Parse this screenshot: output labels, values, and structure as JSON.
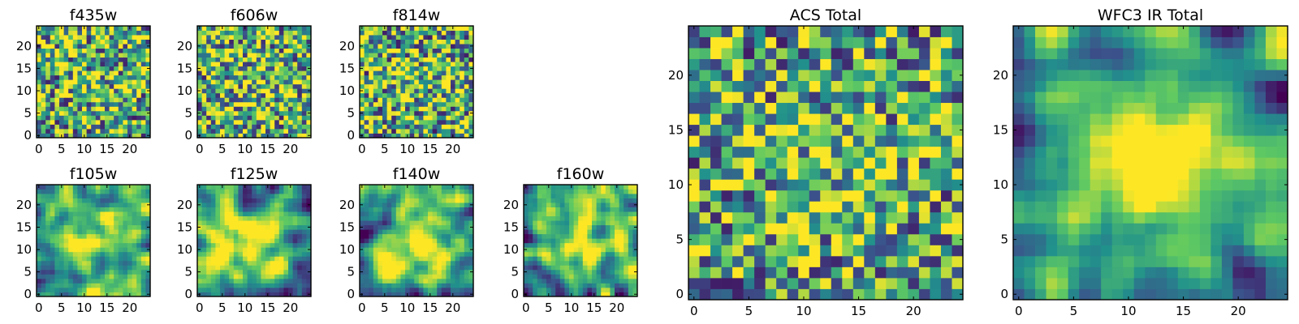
{
  "figure": {
    "colormap": "viridis",
    "colormap_stops": [
      "#440154",
      "#3b528b",
      "#21918c",
      "#5ec962",
      "#fde725"
    ]
  },
  "chart_data": [
    {
      "type": "heatmap",
      "title": "f435w",
      "xlim": [
        -0.5,
        24.5
      ],
      "ylim": [
        -0.5,
        24.5
      ],
      "xticks": [
        0,
        5,
        10,
        15,
        20
      ],
      "yticks": [
        0,
        5,
        10,
        15,
        20
      ],
      "grid_size": 25,
      "seed": 11,
      "smoothing": 0,
      "concentration": 0.08,
      "mean": 0.64,
      "spread": 0.55
    },
    {
      "type": "heatmap",
      "title": "f606w",
      "xlim": [
        -0.5,
        24.5
      ],
      "ylim": [
        -0.5,
        24.5
      ],
      "xticks": [
        0,
        5,
        10,
        15,
        20
      ],
      "yticks": [
        0,
        5,
        10,
        15,
        20
      ],
      "grid_size": 25,
      "seed": 23,
      "smoothing": 0,
      "concentration": 0.08,
      "mean": 0.64,
      "spread": 0.55
    },
    {
      "type": "heatmap",
      "title": "f814w",
      "xlim": [
        -0.5,
        24.5
      ],
      "ylim": [
        -0.5,
        24.5
      ],
      "xticks": [
        0,
        5,
        10,
        15,
        20
      ],
      "yticks": [
        0,
        5,
        10,
        15,
        20
      ],
      "grid_size": 25,
      "seed": 37,
      "smoothing": 0,
      "concentration": 0.1,
      "mean": 0.64,
      "spread": 0.55
    },
    {
      "type": "heatmap",
      "title": "f105w",
      "xlim": [
        -0.5,
        24.5
      ],
      "ylim": [
        -0.5,
        24.5
      ],
      "xticks": [
        0,
        5,
        10,
        15,
        20
      ],
      "yticks": [
        0,
        5,
        10,
        15,
        20
      ],
      "grid_size": 25,
      "seed": 41,
      "smoothing": 2,
      "concentration": 0.45,
      "mean": 0.62,
      "spread": 0.6
    },
    {
      "type": "heatmap",
      "title": "f125w",
      "xlim": [
        -0.5,
        24.5
      ],
      "ylim": [
        -0.5,
        24.5
      ],
      "xticks": [
        0,
        5,
        10,
        15,
        20
      ],
      "yticks": [
        0,
        5,
        10,
        15,
        20
      ],
      "grid_size": 25,
      "seed": 53,
      "smoothing": 2,
      "concentration": 0.4,
      "mean": 0.62,
      "spread": 0.6
    },
    {
      "type": "heatmap",
      "title": "f140w",
      "xlim": [
        -0.5,
        24.5
      ],
      "ylim": [
        -0.5,
        24.5
      ],
      "xticks": [
        0,
        5,
        10,
        15,
        20
      ],
      "yticks": [
        0,
        5,
        10,
        15,
        20
      ],
      "grid_size": 25,
      "seed": 67,
      "smoothing": 2,
      "concentration": 0.45,
      "mean": 0.62,
      "spread": 0.6
    },
    {
      "type": "heatmap",
      "title": "f160w",
      "xlim": [
        -0.5,
        24.5
      ],
      "ylim": [
        -0.5,
        24.5
      ],
      "xticks": [
        0,
        5,
        10,
        15,
        20
      ],
      "yticks": [
        0,
        5,
        10,
        15,
        20
      ],
      "grid_size": 25,
      "seed": 79,
      "smoothing": 2,
      "concentration": 0.5,
      "mean": 0.62,
      "spread": 0.6
    },
    {
      "type": "heatmap",
      "title": "ACS Total",
      "xlim": [
        -0.5,
        24.5
      ],
      "ylim": [
        -0.5,
        24.5
      ],
      "xticks": [
        0,
        5,
        10,
        15,
        20
      ],
      "yticks": [
        0,
        5,
        10,
        15,
        20
      ],
      "grid_size": 25,
      "seed": 97,
      "smoothing": 0,
      "concentration": 0.12,
      "mean": 0.6,
      "spread": 0.5
    },
    {
      "type": "heatmap",
      "title": "WFC3 IR Total",
      "xlim": [
        -0.5,
        24.5
      ],
      "ylim": [
        -0.5,
        24.5
      ],
      "xticks": [
        0,
        5,
        10,
        15,
        20
      ],
      "yticks": [
        0,
        5,
        10,
        15,
        20
      ],
      "grid_size": 25,
      "seed": 113,
      "smoothing": 2,
      "concentration": 0.6,
      "mean": 0.6,
      "spread": 0.55
    }
  ]
}
